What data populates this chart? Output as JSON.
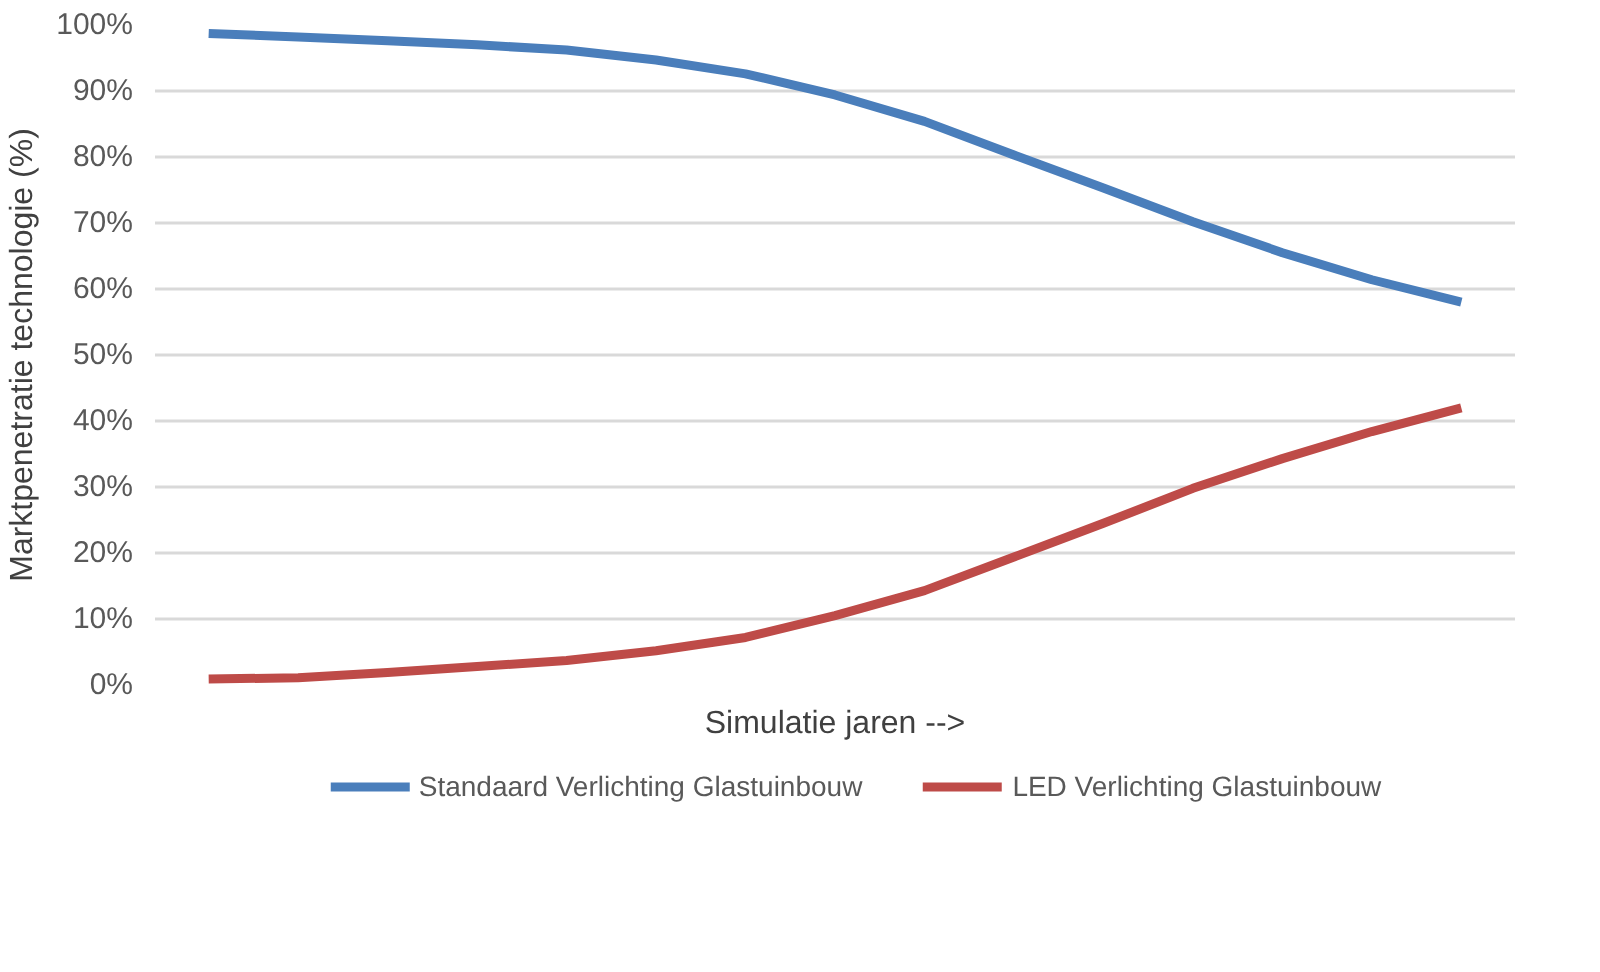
{
  "chart_data": {
    "type": "line",
    "xlabel": "Simulatie jaren -->",
    "ylabel": "Marktpenetratie technologie (%)",
    "categories": [
      null,
      null,
      null,
      null,
      null,
      null,
      null,
      null,
      null,
      null,
      null,
      null,
      null,
      null,
      null
    ],
    "series": [
      {
        "name": "Standaard Verlichting Glastuinbouw",
        "color": "#4a7ebb",
        "values": [
          98.7,
          98.2,
          97.6,
          97.0,
          96.2,
          94.7,
          92.6,
          89.4,
          85.4,
          80.3,
          75.3,
          70.2,
          65.5,
          61.4,
          58.0
        ]
      },
      {
        "name": "LED Verlichting Glastuinbouw",
        "color": "#be4b48",
        "values": [
          0.9,
          1.1,
          1.9,
          2.8,
          3.7,
          5.2,
          7.2,
          10.5,
          14.3,
          19.4,
          24.5,
          29.8,
          34.3,
          38.4,
          42.0
        ]
      }
    ],
    "ylim": [
      0,
      100
    ],
    "yticks": [
      {
        "value": 0,
        "label": "0%"
      },
      {
        "value": 10,
        "label": "10%"
      },
      {
        "value": 20,
        "label": "20%"
      },
      {
        "value": 30,
        "label": "30%"
      },
      {
        "value": 40,
        "label": "40%"
      },
      {
        "value": 50,
        "label": "50%"
      },
      {
        "value": 60,
        "label": "60%"
      },
      {
        "value": 70,
        "label": "70%"
      },
      {
        "value": 80,
        "label": "80%"
      },
      {
        "value": 90,
        "label": "90%"
      },
      {
        "value": 100,
        "label": "100%"
      }
    ],
    "grid": "y",
    "legend": "bottom",
    "line_style": "solid",
    "marker": "none"
  }
}
